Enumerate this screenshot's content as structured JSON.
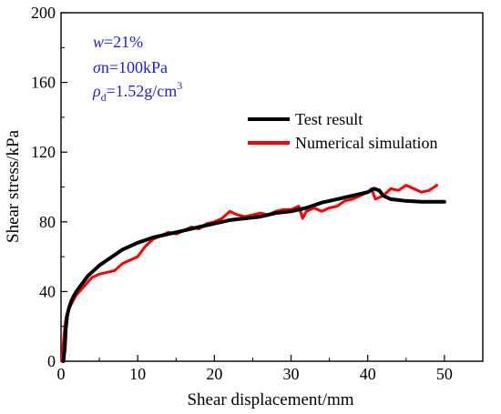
{
  "chart_data": {
    "type": "line",
    "xlabel": "Shear displacement/mm",
    "ylabel": "Shear stress/kPa",
    "xlim": [
      0,
      55
    ],
    "ylim": [
      0,
      200
    ],
    "xticks": [
      0,
      10,
      20,
      30,
      40,
      50
    ],
    "xtick_labels": [
      "0",
      "10",
      "20",
      "30",
      "40",
      "50"
    ],
    "yticks": [
      0,
      40,
      80,
      120,
      160,
      200
    ],
    "ytick_labels": [
      "0",
      "40",
      "80",
      "120",
      "160",
      "200"
    ],
    "grid": false,
    "legend_position": "upper-right",
    "annotations": {
      "moisture": {
        "symbol": "w",
        "text": "=21%"
      },
      "normal_stress": {
        "symbol": "σ",
        "text": "n=100kPa"
      },
      "density": {
        "symbol": "ρ",
        "subscript": "d",
        "text": "=1.52g/cm",
        "superscript": "3"
      }
    },
    "series": [
      {
        "name": "Test result",
        "color": "#000000",
        "x": [
          0.3,
          0.5,
          0.6,
          0.8,
          1.0,
          1.3,
          1.6,
          2.0,
          2.5,
          3.0,
          3.5,
          4.0,
          5.0,
          6.0,
          7.0,
          8.0,
          9.0,
          10.0,
          12.0,
          14.0,
          16.0,
          18.0,
          20.0,
          22.0,
          24.0,
          26.0,
          28.0,
          30.0,
          32.0,
          34.0,
          36.0,
          38.0,
          40.0,
          40.8,
          41.5,
          42.0,
          43.0,
          45.0,
          47.0,
          49.0,
          50.0
        ],
        "y": [
          0,
          8,
          18,
          26,
          30,
          34,
          37,
          40,
          43,
          46,
          49,
          51,
          55,
          58,
          61,
          64,
          66,
          68,
          71,
          73,
          75,
          77,
          79,
          81,
          82,
          83,
          85,
          86,
          88,
          91,
          93,
          95,
          97,
          99,
          98,
          95,
          93,
          92,
          91.5,
          91.5,
          91.5
        ]
      },
      {
        "name": "Numerical simulation",
        "color": "#ff0000",
        "x": [
          0.1,
          0.3,
          0.5,
          0.7,
          1.0,
          1.5,
          2.0,
          3.0,
          4.0,
          5.0,
          6.0,
          7.0,
          8.0,
          9.0,
          10.0,
          11.0,
          12.0,
          13.0,
          14.0,
          15.0,
          16.0,
          17.0,
          18.0,
          19.0,
          20.0,
          21.0,
          22.0,
          23.0,
          24.0,
          25.0,
          26.0,
          27.0,
          28.0,
          29.0,
          30.0,
          31.0,
          31.5,
          32.0,
          33.0,
          34.0,
          35.0,
          36.0,
          37.0,
          38.0,
          39.0,
          40.0,
          40.5,
          41.0,
          42.0,
          43.0,
          44.0,
          45.0,
          46.0,
          47.0,
          48.0,
          49.0
        ],
        "y": [
          0,
          10,
          20,
          26,
          30,
          34,
          38,
          43,
          48,
          50,
          51,
          52,
          56,
          58,
          60,
          66,
          70,
          72,
          74,
          73,
          75,
          77,
          76,
          79,
          80,
          82,
          86,
          84,
          83,
          84,
          85,
          84,
          86,
          87,
          87,
          89,
          82,
          86,
          88,
          86,
          88,
          89,
          92,
          93,
          95,
          97,
          99,
          93,
          95,
          99,
          98,
          101,
          99,
          97,
          98,
          101
        ]
      }
    ]
  }
}
